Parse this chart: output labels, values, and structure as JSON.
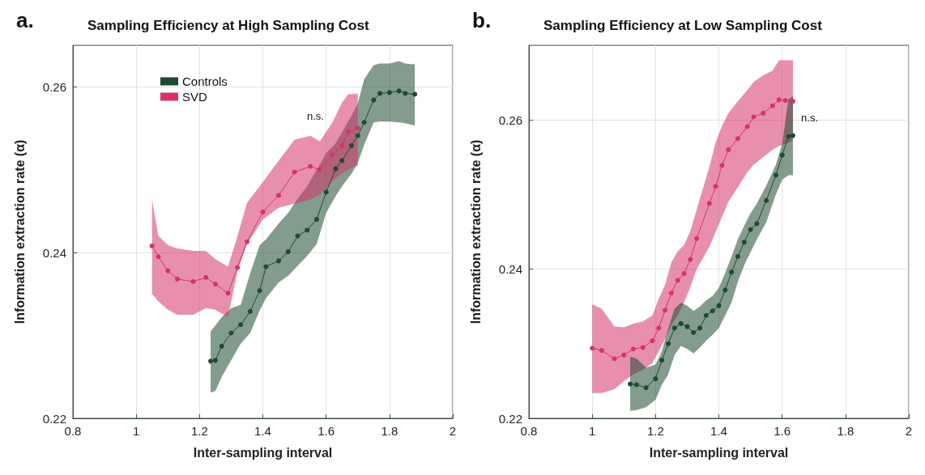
{
  "chart_data": [
    {
      "type": "line",
      "title": "Sampling Efficiency at High Sampling Cost",
      "xlabel": "Inter-sampling interval",
      "ylabel": "Information extraction rate (α)",
      "annotations": [
        "a.",
        "n.s."
      ],
      "xlim": [
        0.8,
        2
      ],
      "xticks": [
        0.8,
        1,
        1.2,
        1.4,
        1.6,
        1.8,
        2
      ],
      "ylim": [
        0.22,
        0.265
      ],
      "yticks": [
        0.22,
        0.24,
        0.26
      ],
      "grid": true,
      "legend": "top left",
      "marker": "circle",
      "series": [
        {
          "name": "Controls",
          "color": "#1e4a2f",
          "x": [
            1.235,
            1.25,
            1.27,
            1.3,
            1.33,
            1.36,
            1.39,
            1.41,
            1.45,
            1.48,
            1.51,
            1.54,
            1.57,
            1.6,
            1.63,
            1.65,
            1.68,
            1.7,
            1.72,
            1.75,
            1.77,
            1.8,
            1.83,
            1.85,
            1.88
          ],
          "values": [
            0.2269,
            0.227,
            0.2287,
            0.2303,
            0.2313,
            0.2329,
            0.2354,
            0.2383,
            0.239,
            0.2401,
            0.242,
            0.2427,
            0.244,
            0.2473,
            0.2501,
            0.2511,
            0.2529,
            0.2541,
            0.2557,
            0.2584,
            0.2592,
            0.2593,
            0.2595,
            0.2592,
            0.2591
          ],
          "upper": [
            0.2305,
            0.2312,
            0.2322,
            0.2333,
            0.2337,
            0.2375,
            0.2409,
            0.2416,
            0.2435,
            0.2448,
            0.2465,
            0.248,
            0.25,
            0.252,
            0.2532,
            0.2545,
            0.2565,
            0.258,
            0.2609,
            0.2626,
            0.2628,
            0.2628,
            0.2631,
            0.2628,
            0.2627
          ],
          "lower": [
            0.2231,
            0.2233,
            0.225,
            0.227,
            0.229,
            0.2303,
            0.233,
            0.2345,
            0.2364,
            0.2372,
            0.2384,
            0.2396,
            0.241,
            0.2448,
            0.2468,
            0.248,
            0.2495,
            0.2508,
            0.253,
            0.2557,
            0.2558,
            0.2558,
            0.2557,
            0.2556,
            0.2553
          ]
        },
        {
          "name": "SVD",
          "color": "#d6336c",
          "x": [
            1.05,
            1.07,
            1.1,
            1.13,
            1.18,
            1.22,
            1.25,
            1.29,
            1.32,
            1.35,
            1.4,
            1.45,
            1.5,
            1.55,
            1.58,
            1.62,
            1.65,
            1.67,
            1.7
          ],
          "values": [
            0.2408,
            0.2395,
            0.2378,
            0.2368,
            0.2365,
            0.237,
            0.2362,
            0.2351,
            0.2382,
            0.2413,
            0.2449,
            0.2469,
            0.2497,
            0.2504,
            0.25,
            0.2518,
            0.2529,
            0.2546,
            0.255
          ],
          "upper": [
            0.2464,
            0.242,
            0.2409,
            0.2405,
            0.2402,
            0.2402,
            0.2392,
            0.2383,
            0.242,
            0.246,
            0.2485,
            0.2511,
            0.2536,
            0.2541,
            0.2534,
            0.2557,
            0.2581,
            0.2591,
            0.2592
          ],
          "lower": [
            0.235,
            0.2341,
            0.2331,
            0.2325,
            0.2325,
            0.2333,
            0.2331,
            0.2322,
            0.2378,
            0.241,
            0.244,
            0.2454,
            0.2459,
            0.2464,
            0.247,
            0.2486,
            0.2496,
            0.25,
            0.2505
          ]
        }
      ]
    },
    {
      "type": "line",
      "title": "Sampling Efficiency at Low Sampling Cost",
      "xlabel": "Inter-sampling interval",
      "ylabel": "Information extraction rate (α)",
      "annotations": [
        "b.",
        "n.s."
      ],
      "xlim": [
        0.8,
        2
      ],
      "xticks": [
        0.8,
        1,
        1.2,
        1.4,
        1.6,
        1.8,
        2
      ],
      "ylim": [
        0.22,
        0.27
      ],
      "yticks": [
        0.22,
        0.24,
        0.26
      ],
      "grid": true,
      "marker": "circle",
      "series": [
        {
          "color": "#d6336c",
          "x": [
            1.0,
            1.03,
            1.07,
            1.1,
            1.13,
            1.16,
            1.19,
            1.21,
            1.23,
            1.25,
            1.27,
            1.29,
            1.31,
            1.33,
            1.37,
            1.39,
            1.41,
            1.43,
            1.46,
            1.49,
            1.51,
            1.54,
            1.57,
            1.59,
            1.61,
            1.634
          ],
          "values": [
            0.2294,
            0.2291,
            0.228,
            0.2285,
            0.2293,
            0.2295,
            0.2304,
            0.2321,
            0.2345,
            0.2368,
            0.2385,
            0.2394,
            0.2413,
            0.2441,
            0.2488,
            0.2511,
            0.2539,
            0.256,
            0.2575,
            0.2591,
            0.2604,
            0.2609,
            0.2619,
            0.2627,
            0.2626,
            0.2625
          ],
          "upper": [
            0.2353,
            0.2347,
            0.2323,
            0.2322,
            0.2327,
            0.233,
            0.2338,
            0.236,
            0.2379,
            0.2409,
            0.2424,
            0.2432,
            0.2451,
            0.248,
            0.2537,
            0.257,
            0.2592,
            0.2609,
            0.2625,
            0.264,
            0.2651,
            0.266,
            0.2666,
            0.268,
            0.268,
            0.268
          ],
          "lower": [
            0.2234,
            0.2234,
            0.2239,
            0.225,
            0.2259,
            0.2265,
            0.2274,
            0.229,
            0.2306,
            0.2325,
            0.2338,
            0.2355,
            0.2376,
            0.24,
            0.243,
            0.245,
            0.247,
            0.249,
            0.251,
            0.253,
            0.254,
            0.255,
            0.256,
            0.2565,
            0.2568,
            0.2572
          ]
        },
        {
          "color": "#1e4a2f",
          "x": [
            1.12,
            1.14,
            1.17,
            1.2,
            1.22,
            1.24,
            1.26,
            1.28,
            1.3,
            1.32,
            1.34,
            1.36,
            1.38,
            1.4,
            1.42,
            1.44,
            1.46,
            1.48,
            1.5,
            1.52,
            1.55,
            1.58,
            1.6,
            1.62,
            1.634
          ],
          "values": [
            0.2246,
            0.2245,
            0.2241,
            0.2253,
            0.2278,
            0.23,
            0.2321,
            0.2327,
            0.2323,
            0.2315,
            0.2321,
            0.2338,
            0.2344,
            0.2351,
            0.2372,
            0.2396,
            0.2417,
            0.2436,
            0.2453,
            0.2461,
            0.2492,
            0.2526,
            0.2553,
            0.2578,
            0.2579
          ],
          "upper": [
            0.2283,
            0.228,
            0.2268,
            0.2272,
            0.229,
            0.232,
            0.2347,
            0.2355,
            0.2351,
            0.2344,
            0.235,
            0.2358,
            0.2364,
            0.2375,
            0.2395,
            0.2417,
            0.244,
            0.2458,
            0.2475,
            0.2488,
            0.2512,
            0.254,
            0.2568,
            0.2628,
            0.2632
          ],
          "lower": [
            0.221,
            0.2211,
            0.2215,
            0.2225,
            0.2245,
            0.2259,
            0.2285,
            0.2297,
            0.2293,
            0.2287,
            0.2295,
            0.2304,
            0.2312,
            0.2321,
            0.2338,
            0.2355,
            0.2383,
            0.2405,
            0.2423,
            0.244,
            0.2463,
            0.25,
            0.252,
            0.2526,
            0.2526
          ]
        }
      ]
    }
  ]
}
